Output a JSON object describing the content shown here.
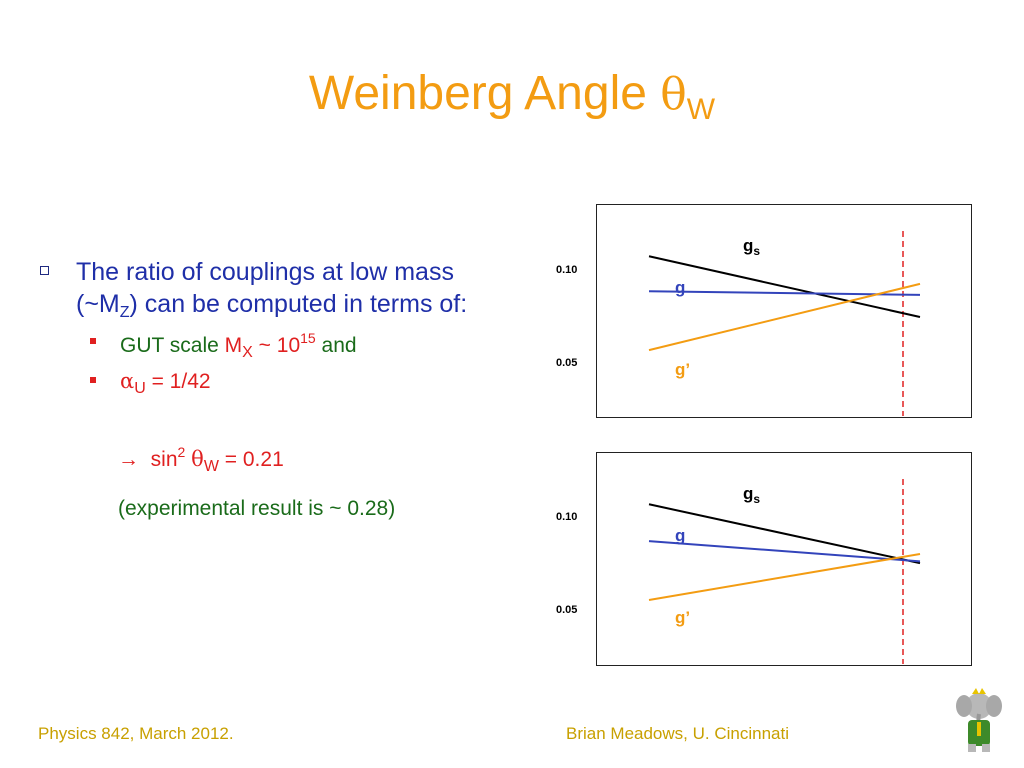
{
  "title": {
    "text": "Weinberg Angle ",
    "symbol": "θ",
    "subscript": "W"
  },
  "bullet": {
    "line1": "The ratio of couplings at low mass",
    "line2_pre": "(~M",
    "line2_sub": "Z",
    "line2_post": ") can be computed in terms of:"
  },
  "items": [
    {
      "pre": "GUT scale ",
      "m": "M",
      "m_sub": "X",
      "mid": " ~ 10",
      "sup": "15",
      "post": " and"
    },
    {
      "alpha": "α",
      "alpha_sub": "U",
      "post": " = 1/42"
    }
  ],
  "result": {
    "arrow": "→",
    "sin": "sin",
    "sup": "2",
    "theta": "θ",
    "sub": "W",
    "value": " = 0.21"
  },
  "experimental": "(experimental result is ~ 0.28)",
  "footer": {
    "left": "Physics 842, March 2012.",
    "right": "Brian Meadows, U. Cincinnati"
  },
  "colors": {
    "title": "#f39c12",
    "blue": "#1f2fa8",
    "red": "#e02020",
    "green": "#1a6b1a",
    "orange": "#f39c12",
    "footer": "#c8a000"
  },
  "chart_data": [
    {
      "type": "line",
      "yticks": [
        "0.10",
        "0.05"
      ],
      "series": [
        {
          "name": "g",
          "label_sub": "s",
          "color": "#000000",
          "y_left": 0.108,
          "y_right": 0.075
        },
        {
          "name": "g",
          "label_sub": "",
          "color": "#3344bb",
          "y_left": 0.089,
          "y_right": 0.087
        },
        {
          "name": "g’",
          "label_sub": "",
          "color": "#f39c12",
          "y_left": 0.057,
          "y_right": 0.093
        }
      ],
      "vline": {
        "style": "dashed",
        "color": "#e02020"
      }
    },
    {
      "type": "line",
      "yticks": [
        "0.10",
        "0.05"
      ],
      "series": [
        {
          "name": "g",
          "label_sub": "s",
          "color": "#000000",
          "y_left": 0.108,
          "y_right": 0.076
        },
        {
          "name": "g",
          "label_sub": "",
          "color": "#3344bb",
          "y_left": 0.088,
          "y_right": 0.077
        },
        {
          "name": "g’",
          "label_sub": "",
          "color": "#f39c12",
          "y_left": 0.056,
          "y_right": 0.081
        }
      ],
      "vline": {
        "style": "dashed",
        "color": "#e02020"
      }
    }
  ]
}
